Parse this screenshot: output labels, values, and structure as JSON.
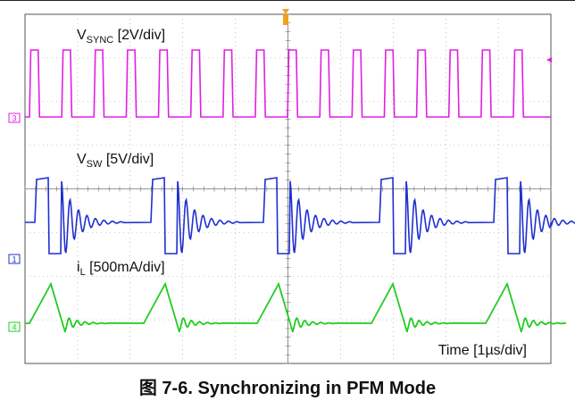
{
  "chart_data": {
    "type": "line",
    "caption": "图 7-6. Synchronizing in PFM Mode",
    "time_label": "Time [1µs/div]",
    "grid": true,
    "channel_markers": [
      "3",
      "1",
      "4"
    ],
    "sync_pulse_count": 16,
    "series": [
      {
        "name": "VSYNC [2V/div]",
        "label_main": "V",
        "label_sub": "SYNC",
        "label_tail": " [2V/div]",
        "color": "#e020e0"
      },
      {
        "name": "VSW [5V/div]",
        "label_main": "V",
        "label_sub": "SW",
        "label_tail": " [5V/div]",
        "color": "#1f2fd0"
      },
      {
        "name": "iL [500mA/div]",
        "label_main": "i",
        "label_sub": "L",
        "label_tail": " [500mA/div]",
        "color": "#22cc22"
      }
    ],
    "colors": {
      "grid": "#9a9a9a",
      "frame": "#555555",
      "marker": "#f0a020"
    }
  }
}
